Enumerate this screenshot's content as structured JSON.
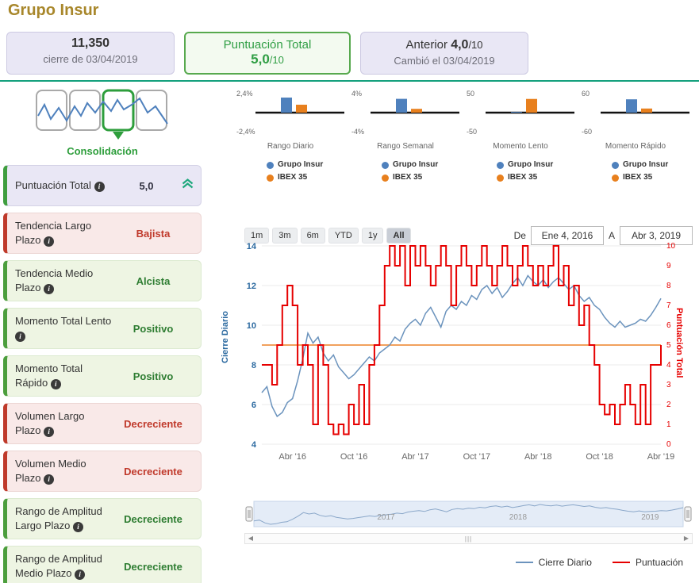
{
  "title": "Grupo Insur",
  "summary": {
    "price": {
      "value": "11,350",
      "caption": "cierre de 03/04/2019"
    },
    "score": {
      "label": "Puntuación Total",
      "value": "5,0",
      "suffix": "/10"
    },
    "previous": {
      "label": "Anterior",
      "value": "4,0",
      "suffix": "/10",
      "caption": "Cambió el 03/04/2019"
    }
  },
  "phase": {
    "label": "Consolidación"
  },
  "indicators": [
    {
      "label": "Puntuación Total",
      "value": "5,0",
      "state": "score",
      "trend_icon": "double-chevron-up"
    },
    {
      "label": "Tendencia Largo Plazo",
      "value": "Bajista",
      "state": "negative"
    },
    {
      "label": "Tendencia Medio Plazo",
      "value": "Alcista",
      "state": "positive"
    },
    {
      "label": "Momento Total Lento",
      "value": "Positivo",
      "state": "positive"
    },
    {
      "label": "Momento Total Rápido",
      "value": "Positivo",
      "state": "positive"
    },
    {
      "label": "Volumen Largo Plazo",
      "value": "Decreciente",
      "state": "negative"
    },
    {
      "label": "Volumen Medio Plazo",
      "value": "Decreciente",
      "state": "negative"
    },
    {
      "label": "Rango de Amplitud Largo Plazo",
      "value": "Decreciente",
      "state": "positive"
    },
    {
      "label": "Rango de Amplitud Medio Plazo",
      "value": "Decreciente",
      "state": "positive"
    }
  ],
  "controls": {
    "ranges": [
      "1m",
      "3m",
      "6m",
      "YTD",
      "1y",
      "All"
    ],
    "selected_range": "All",
    "from_label": "De",
    "from_value": "Ene 4, 2016",
    "to_label": "A",
    "to_value": "Abr 3, 2019"
  },
  "colors": {
    "title": "#a8872b",
    "divider": "#13a07c",
    "positive": "#2e7d32",
    "negative": "#c0392b",
    "grupo_blue": "#4f81bd",
    "ibex_orange": "#e8801e",
    "price_line": "#6b93bd",
    "score_line": "#e60000",
    "threshold_orange": "#f1a15d"
  },
  "chart_data": [
    {
      "type": "bar",
      "title": "Rango Diario",
      "ylim": [
        -2.4,
        2.4
      ],
      "tick_labels": [
        "2,4%",
        "-2,4%"
      ],
      "series": [
        {
          "name": "Grupo Insur",
          "value": 1.9,
          "color": "#4f81bd"
        },
        {
          "name": "IBEX 35",
          "value": 1.0,
          "color": "#e8801e"
        }
      ]
    },
    {
      "type": "bar",
      "title": "Rango Semanal",
      "ylim": [
        -4,
        4
      ],
      "tick_labels": [
        "4%",
        "-4%"
      ],
      "series": [
        {
          "name": "Grupo Insur",
          "value": 2.9,
          "color": "#4f81bd"
        },
        {
          "name": "IBEX 35",
          "value": 0.8,
          "color": "#e8801e"
        }
      ]
    },
    {
      "type": "bar",
      "title": "Momento Lento",
      "ylim": [
        -50,
        50
      ],
      "tick_labels": [
        "50",
        "-50"
      ],
      "series": [
        {
          "name": "Grupo Insur",
          "value": 1.5,
          "color": "#4f81bd"
        },
        {
          "name": "IBEX 35",
          "value": 36,
          "color": "#e8801e"
        }
      ]
    },
    {
      "type": "bar",
      "title": "Momento Rápido",
      "ylim": [
        -60,
        60
      ],
      "tick_labels": [
        "60",
        "-60"
      ],
      "series": [
        {
          "name": "Grupo Insur",
          "value": 42,
          "color": "#4f81bd"
        },
        {
          "name": "IBEX 35",
          "value": 13,
          "color": "#e8801e"
        }
      ]
    },
    {
      "type": "line",
      "title": "",
      "x_range": [
        0,
        39
      ],
      "x_ticks": [
        {
          "m": 3,
          "label": "Abr '16"
        },
        {
          "m": 9,
          "label": "Oct '16"
        },
        {
          "m": 15,
          "label": "Abr '17"
        },
        {
          "m": 21,
          "label": "Oct '17"
        },
        {
          "m": 27,
          "label": "Abr '18"
        },
        {
          "m": 33,
          "label": "Oct '18"
        },
        {
          "m": 39,
          "label": "Abr '19"
        }
      ],
      "y_left": {
        "label": "Cierre Diario",
        "min": 4,
        "max": 14,
        "ticks": [
          4,
          6,
          8,
          10,
          12,
          14
        ],
        "color": "#2c6aa0"
      },
      "y_right": {
        "label": "Puntuación Total",
        "min": 0,
        "max": 10,
        "ticks": [
          0,
          1,
          2,
          3,
          4,
          5,
          6,
          7,
          8,
          9,
          10
        ],
        "color": "#e60000"
      },
      "threshold_right": 5,
      "threshold_color": "#f1a15d",
      "series": [
        {
          "name": "Cierre Diario",
          "type": "line",
          "color": "#6b93bd",
          "points": [
            [
              0,
              6.6
            ],
            [
              0.5,
              6.9
            ],
            [
              1,
              5.9
            ],
            [
              1.5,
              5.4
            ],
            [
              2,
              5.6
            ],
            [
              2.5,
              6.1
            ],
            [
              3,
              6.3
            ],
            [
              3.5,
              7.2
            ],
            [
              4,
              8.3
            ],
            [
              4.5,
              9.6
            ],
            [
              5,
              9.1
            ],
            [
              5.5,
              9.4
            ],
            [
              6,
              8.6
            ],
            [
              6.5,
              8.2
            ],
            [
              7,
              8.5
            ],
            [
              7.5,
              7.9
            ],
            [
              8,
              7.6
            ],
            [
              8.5,
              7.3
            ],
            [
              9,
              7.5
            ],
            [
              9.5,
              7.8
            ],
            [
              10,
              8.1
            ],
            [
              10.5,
              8.4
            ],
            [
              11,
              8.2
            ],
            [
              11.5,
              8.6
            ],
            [
              12,
              8.8
            ],
            [
              12.5,
              9.0
            ],
            [
              13,
              9.4
            ],
            [
              13.5,
              9.2
            ],
            [
              14,
              9.8
            ],
            [
              14.5,
              10.1
            ],
            [
              15,
              10.3
            ],
            [
              15.5,
              10.0
            ],
            [
              16,
              10.6
            ],
            [
              16.5,
              10.9
            ],
            [
              17,
              10.4
            ],
            [
              17.5,
              9.9
            ],
            [
              18,
              10.7
            ],
            [
              18.5,
              11.0
            ],
            [
              19,
              10.8
            ],
            [
              19.5,
              11.2
            ],
            [
              20,
              11.0
            ],
            [
              20.5,
              11.5
            ],
            [
              21,
              11.3
            ],
            [
              21.5,
              11.8
            ],
            [
              22,
              12.0
            ],
            [
              22.5,
              11.6
            ],
            [
              23,
              11.9
            ],
            [
              23.5,
              11.4
            ],
            [
              24,
              11.7
            ],
            [
              24.5,
              12.1
            ],
            [
              25,
              12.4
            ],
            [
              25.5,
              12.0
            ],
            [
              26,
              12.5
            ],
            [
              26.5,
              12.2
            ],
            [
              27,
              12.0
            ],
            [
              27.5,
              12.3
            ],
            [
              28,
              11.9
            ],
            [
              28.5,
              12.2
            ],
            [
              29,
              12.4
            ],
            [
              29.5,
              12.1
            ],
            [
              30,
              11.8
            ],
            [
              30.5,
              12.0
            ],
            [
              31,
              11.5
            ],
            [
              31.5,
              11.2
            ],
            [
              32,
              11.4
            ],
            [
              32.5,
              11.0
            ],
            [
              33,
              10.8
            ],
            [
              33.5,
              10.4
            ],
            [
              34,
              10.1
            ],
            [
              34.5,
              9.9
            ],
            [
              35,
              10.2
            ],
            [
              35.5,
              9.9
            ],
            [
              36,
              10.0
            ],
            [
              36.5,
              10.1
            ],
            [
              37,
              10.3
            ],
            [
              37.5,
              10.2
            ],
            [
              38,
              10.5
            ],
            [
              38.5,
              10.9
            ],
            [
              39,
              11.35
            ]
          ]
        },
        {
          "name": "Puntuación",
          "type": "step",
          "color": "#e60000",
          "points": [
            [
              0,
              4
            ],
            [
              1,
              3
            ],
            [
              1.5,
              5
            ],
            [
              2,
              7
            ],
            [
              2.5,
              8
            ],
            [
              3,
              7
            ],
            [
              3.5,
              4
            ],
            [
              4,
              5
            ],
            [
              4.5,
              4
            ],
            [
              5,
              1
            ],
            [
              5.5,
              5
            ],
            [
              6,
              4
            ],
            [
              6.5,
              1
            ],
            [
              7,
              0.5
            ],
            [
              7.5,
              1
            ],
            [
              8,
              0.5
            ],
            [
              8.5,
              2
            ],
            [
              9,
              1
            ],
            [
              9.5,
              3
            ],
            [
              10,
              1
            ],
            [
              10.5,
              4
            ],
            [
              11,
              5
            ],
            [
              11.5,
              7
            ],
            [
              12,
              9
            ],
            [
              12.5,
              10
            ],
            [
              13,
              9
            ],
            [
              13.5,
              10
            ],
            [
              14,
              8
            ],
            [
              14.5,
              10
            ],
            [
              15,
              9
            ],
            [
              15.5,
              10
            ],
            [
              16,
              9
            ],
            [
              16.5,
              8
            ],
            [
              17,
              9
            ],
            [
              17.5,
              10
            ],
            [
              18,
              9
            ],
            [
              18.5,
              7
            ],
            [
              19,
              9
            ],
            [
              19.5,
              10
            ],
            [
              20,
              9
            ],
            [
              20.5,
              8
            ],
            [
              21,
              9
            ],
            [
              21.5,
              10
            ],
            [
              22,
              9
            ],
            [
              22.5,
              8
            ],
            [
              23,
              9
            ],
            [
              23.5,
              10
            ],
            [
              24,
              9
            ],
            [
              24.5,
              8
            ],
            [
              25,
              9
            ],
            [
              25.5,
              10
            ],
            [
              26,
              9
            ],
            [
              26.5,
              8
            ],
            [
              27,
              9
            ],
            [
              27.5,
              8
            ],
            [
              28,
              9
            ],
            [
              28.5,
              10
            ],
            [
              29,
              8
            ],
            [
              29.5,
              9
            ],
            [
              30,
              7
            ],
            [
              30.5,
              8
            ],
            [
              31,
              6
            ],
            [
              31.5,
              7
            ],
            [
              32,
              5
            ],
            [
              32.5,
              4
            ],
            [
              33,
              2
            ],
            [
              33.5,
              1.5
            ],
            [
              34,
              2
            ],
            [
              34.5,
              1
            ],
            [
              35,
              2
            ],
            [
              35.5,
              3
            ],
            [
              36,
              2
            ],
            [
              36.5,
              1
            ],
            [
              37,
              3
            ],
            [
              37.5,
              1
            ],
            [
              38,
              4
            ],
            [
              38.5,
              4
            ],
            [
              39,
              5
            ]
          ]
        }
      ]
    }
  ],
  "navigator": {
    "years": [
      "2017",
      "2018",
      "2019"
    ]
  },
  "legend": [
    {
      "label": "Cierre Diario",
      "color": "#6b93bd"
    },
    {
      "label": "Puntuación",
      "color": "#e60000"
    }
  ]
}
